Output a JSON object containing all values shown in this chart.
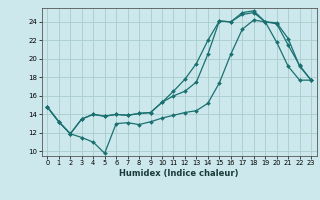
{
  "xlabel": "Humidex (Indice chaleur)",
  "bg_color": "#cce8ec",
  "grid_color": "#aacccc",
  "line_color": "#1a7070",
  "xlim": [
    -0.5,
    23.5
  ],
  "ylim": [
    9.5,
    25.5
  ],
  "xticks": [
    0,
    1,
    2,
    3,
    4,
    5,
    6,
    7,
    8,
    9,
    10,
    11,
    12,
    13,
    14,
    15,
    16,
    17,
    18,
    19,
    20,
    21,
    22,
    23
  ],
  "yticks": [
    10,
    12,
    14,
    16,
    18,
    20,
    22,
    24
  ],
  "line1_x": [
    0,
    1,
    2,
    3,
    4,
    5,
    6,
    7,
    8,
    9,
    10,
    11,
    12,
    13,
    14,
    15,
    16,
    17,
    18,
    19,
    20,
    21,
    22,
    23
  ],
  "line1_y": [
    14.8,
    13.2,
    11.9,
    11.5,
    11.0,
    9.8,
    13.0,
    13.1,
    12.9,
    13.2,
    13.6,
    13.9,
    14.2,
    14.4,
    15.2,
    17.4,
    20.5,
    23.2,
    24.2,
    24.0,
    23.8,
    21.5,
    19.3,
    17.7
  ],
  "line2_x": [
    0,
    1,
    2,
    3,
    4,
    5,
    6,
    7,
    8,
    9,
    10,
    11,
    12,
    13,
    14,
    15,
    16,
    17,
    18,
    19,
    20,
    21,
    22,
    23
  ],
  "line2_y": [
    14.8,
    13.2,
    11.9,
    13.5,
    14.0,
    13.8,
    14.0,
    13.9,
    14.1,
    14.2,
    15.3,
    16.0,
    16.5,
    17.5,
    20.5,
    24.1,
    24.0,
    24.8,
    25.0,
    24.0,
    23.9,
    22.2,
    19.2,
    17.7
  ],
  "line3_x": [
    0,
    1,
    2,
    3,
    4,
    5,
    6,
    7,
    8,
    9,
    10,
    11,
    12,
    13,
    14,
    15,
    16,
    17,
    18,
    19,
    20,
    21,
    22,
    23
  ],
  "line3_y": [
    14.8,
    13.2,
    11.9,
    13.5,
    14.0,
    13.8,
    14.0,
    13.9,
    14.1,
    14.2,
    15.3,
    16.5,
    17.8,
    19.5,
    22.0,
    24.1,
    24.0,
    25.0,
    25.2,
    24.0,
    21.8,
    19.2,
    17.7,
    17.7
  ]
}
